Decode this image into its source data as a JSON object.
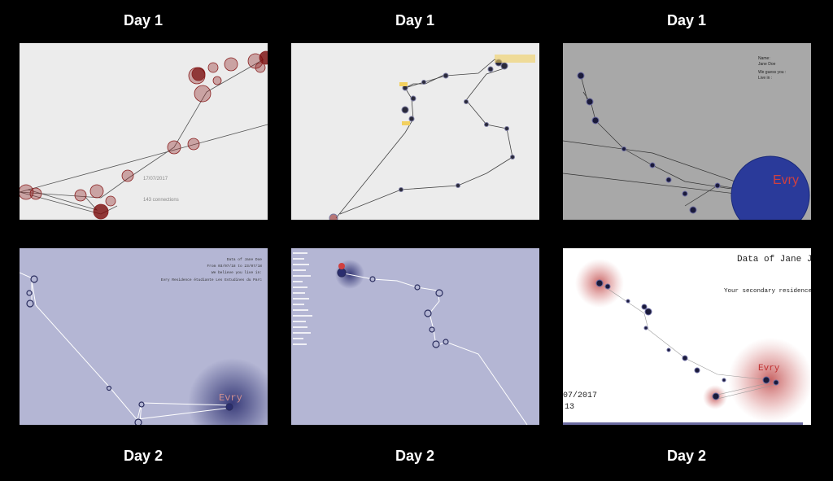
{
  "panels": [
    {
      "label": "Day 1",
      "texts": [
        "17/07/2017",
        "143 connections"
      ]
    },
    {
      "label": "Day 1",
      "texts": []
    },
    {
      "label": "Day 1",
      "texts": [
        "Name:",
        "Jane Doe",
        "We guess you :",
        "Live in :",
        "Evry"
      ]
    },
    {
      "label": "Day 2",
      "texts": [
        "Data of Jane Doe",
        "From 03/07/18 to 23/07/18",
        "We believe you live in:",
        "Evry Residence étudiante Les Estudines du Parc",
        "Evry"
      ]
    },
    {
      "label": "Day 2",
      "texts": []
    },
    {
      "label": "Day 2",
      "texts": [
        "Data of Jane J",
        "Your secondary residence",
        "Evry",
        "07/2017",
        "13"
      ]
    }
  ]
}
